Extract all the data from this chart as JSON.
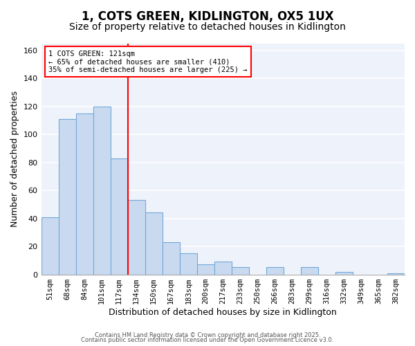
{
  "title": "1, COTS GREEN, KIDLINGTON, OX5 1UX",
  "subtitle": "Size of property relative to detached houses in Kidlington",
  "xlabel": "Distribution of detached houses by size in Kidlington",
  "ylabel": "Number of detached properties",
  "bar_labels": [
    "51sqm",
    "68sqm",
    "84sqm",
    "101sqm",
    "117sqm",
    "134sqm",
    "150sqm",
    "167sqm",
    "183sqm",
    "200sqm",
    "217sqm",
    "233sqm",
    "250sqm",
    "266sqm",
    "283sqm",
    "299sqm",
    "316sqm",
    "332sqm",
    "349sqm",
    "365sqm",
    "382sqm"
  ],
  "bar_values": [
    41,
    111,
    115,
    120,
    83,
    53,
    44,
    23,
    15,
    7,
    9,
    5,
    0,
    5,
    0,
    5,
    0,
    2,
    0,
    0,
    1
  ],
  "bar_color": "#c9daf0",
  "bar_edge_color": "#6fa8d8",
  "vline_x": 4.5,
  "vline_color": "red",
  "ylim": [
    0,
    165
  ],
  "yticks": [
    0,
    20,
    40,
    60,
    80,
    100,
    120,
    140,
    160
  ],
  "annotation_text": "1 COTS GREEN: 121sqm\n← 65% of detached houses are smaller (410)\n35% of semi-detached houses are larger (225) →",
  "annotation_box_color": "white",
  "annotation_box_edge_color": "red",
  "footer_line1": "Contains HM Land Registry data © Crown copyright and database right 2025.",
  "footer_line2": "Contains public sector information licensed under the Open Government Licence v3.0.",
  "fig_background_color": "#ffffff",
  "plot_background_color": "#eef2fa",
  "grid_color": "#ffffff",
  "title_fontsize": 12,
  "subtitle_fontsize": 10,
  "tick_fontsize": 7.5,
  "ylabel_fontsize": 9,
  "xlabel_fontsize": 9,
  "footer_fontsize": 6,
  "annotation_fontsize": 7.5
}
